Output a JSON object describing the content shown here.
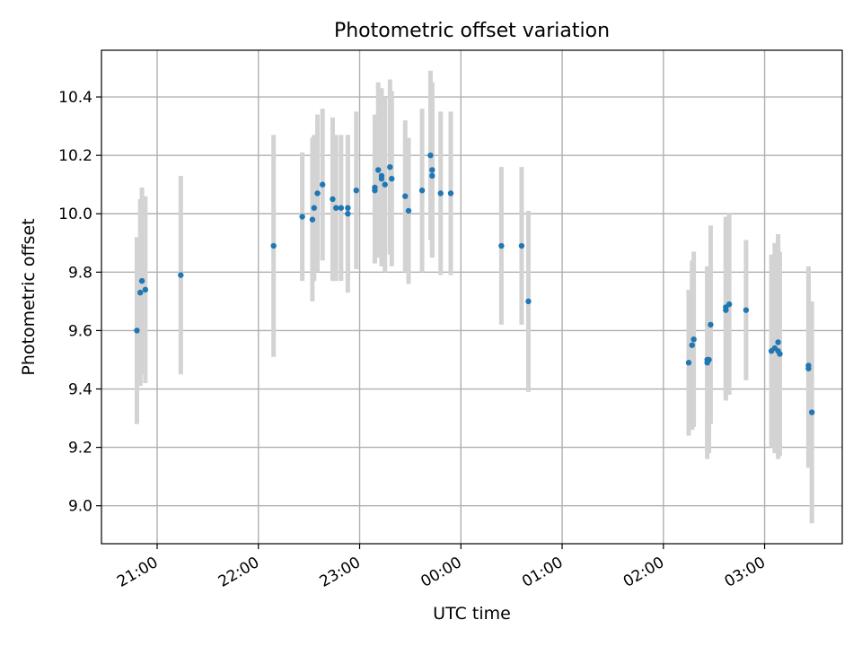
{
  "chart_data": {
    "type": "scatter",
    "title": "Photometric offset variation",
    "xlabel": "UTC time",
    "ylabel": "Photometric offset",
    "x_tick_labels": [
      "21:00",
      "22:00",
      "23:00",
      "00:00",
      "01:00",
      "02:00",
      "03:00"
    ],
    "y_tick_labels": [
      "9.0",
      "9.2",
      "9.4",
      "9.6",
      "9.8",
      "10.0",
      "10.2",
      "10.4"
    ],
    "xlim": [
      "20:27",
      "03:46"
    ],
    "ylim": [
      8.87,
      10.56
    ],
    "grid": true,
    "point_color": "#1f77b4",
    "errorbar_color": "#d3d3d3",
    "series": [
      {
        "x": [
          "20:48",
          "20:50",
          "20:51",
          "20:53",
          "21:14",
          "22:09",
          "22:26",
          "22:32",
          "22:33",
          "22:35",
          "22:38",
          "22:44",
          "22:46",
          "22:49",
          "22:53",
          "22:53",
          "22:58",
          "23:09",
          "23:09",
          "23:11",
          "23:13",
          "23:13",
          "23:15",
          "23:18",
          "23:19",
          "23:27",
          "23:29",
          "23:37",
          "23:42",
          "23:43",
          "23:43",
          "23:48",
          "23:54",
          "00:24",
          "00:36",
          "00:40",
          "02:15",
          "02:17",
          "02:18",
          "02:26",
          "02:26",
          "02:27",
          "02:28",
          "02:37",
          "02:37",
          "02:39",
          "02:49",
          "03:04",
          "03:06",
          "03:08",
          "03:08",
          "03:09",
          "03:26",
          "03:26",
          "03:28"
        ],
        "y": [
          9.6,
          9.73,
          9.77,
          9.74,
          9.79,
          9.89,
          9.99,
          9.98,
          10.02,
          10.07,
          10.1,
          10.05,
          10.02,
          10.02,
          10.02,
          10.0,
          10.08,
          10.08,
          10.09,
          10.15,
          10.13,
          10.12,
          10.1,
          10.16,
          10.12,
          10.06,
          10.01,
          10.08,
          10.2,
          10.13,
          10.15,
          10.07,
          10.07,
          9.89,
          9.89,
          9.7,
          9.49,
          9.55,
          9.57,
          9.49,
          9.5,
          9.5,
          9.62,
          9.68,
          9.67,
          9.69,
          9.67,
          9.53,
          9.54,
          9.56,
          9.53,
          9.52,
          9.48,
          9.47,
          9.32
        ],
        "err": [
          0.32,
          0.32,
          0.32,
          0.32,
          0.34,
          0.38,
          0.22,
          0.28,
          0.25,
          0.27,
          0.26,
          0.28,
          0.25,
          0.25,
          0.25,
          0.27,
          0.27,
          0.25,
          0.25,
          0.3,
          0.3,
          0.3,
          0.3,
          0.3,
          0.3,
          0.26,
          0.25,
          0.28,
          0.29,
          0.28,
          0.3,
          0.28,
          0.28,
          0.27,
          0.27,
          0.31,
          0.25,
          0.29,
          0.3,
          0.33,
          0.32,
          0.32,
          0.34,
          0.31,
          0.31,
          0.31,
          0.24,
          0.33,
          0.36,
          0.37,
          0.37,
          0.35,
          0.34,
          0.34,
          0.38
        ]
      }
    ]
  }
}
